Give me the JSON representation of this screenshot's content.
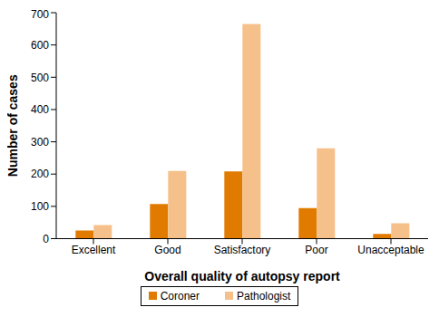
{
  "chart_data": {
    "type": "bar",
    "xlabel": "Overall quality of autopsy report",
    "ylabel": "Number of cases",
    "categories": [
      "Excellent",
      "Good",
      "Satisfactory",
      "Poor",
      "Unacceptable"
    ],
    "series": [
      {
        "name": "Coroner",
        "color": "#e07b00",
        "values": [
          25,
          107,
          208,
          95,
          15
        ]
      },
      {
        "name": "Pathologist",
        "color": "#f5c08a",
        "values": [
          42,
          210,
          665,
          280,
          48
        ]
      }
    ],
    "ylim": [
      0,
      700
    ],
    "yticks": [
      0,
      100,
      200,
      300,
      400,
      500,
      600,
      700
    ],
    "grid": false,
    "legend": "bottom"
  }
}
